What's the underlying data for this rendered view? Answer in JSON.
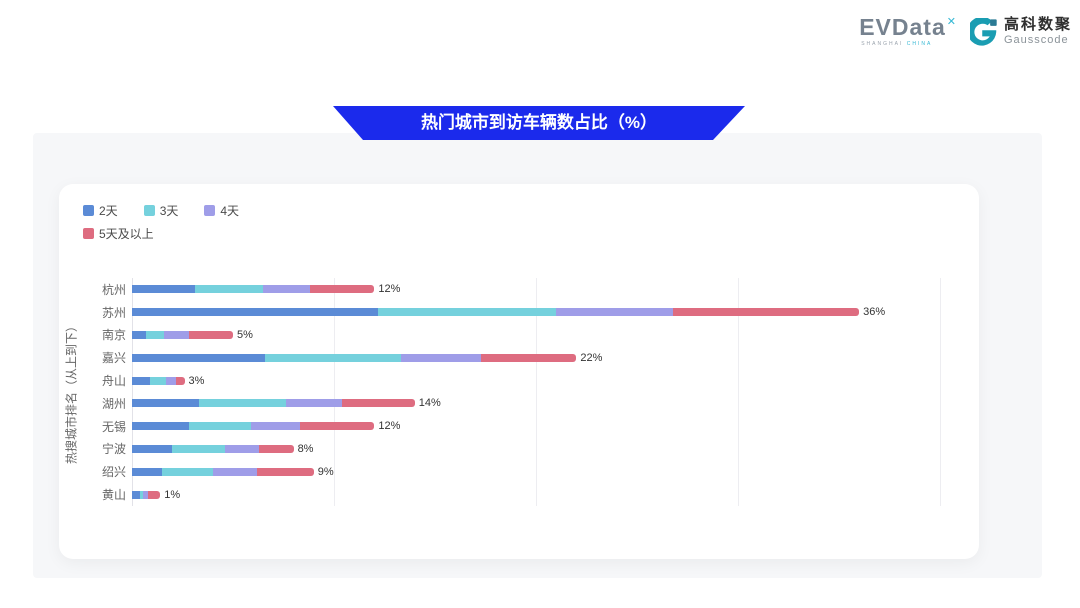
{
  "header": {
    "evdata": {
      "text": "EVData",
      "superscript": "✕",
      "sub_left": "SHANGHAI",
      "sub_right": "CHINA"
    },
    "gausscode": {
      "cn_name": "高科数聚",
      "en_name": "Gausscode"
    }
  },
  "banner": {
    "title": "热门城市到访车辆数占比（%）",
    "color": "#1b2aec"
  },
  "chart_data": {
    "type": "bar",
    "orientation": "horizontal",
    "stacked": true,
    "title": "热门城市到访车辆数占比（%）",
    "ylabel": "热搜城市排名（从上到下）",
    "xlabel": "",
    "xlim": [
      0,
      40
    ],
    "gridlines": [
      10,
      20,
      30,
      40
    ],
    "grid": true,
    "legend_position": "top-left",
    "categories": [
      "杭州",
      "苏州",
      "南京",
      "嘉兴",
      "舟山",
      "湖州",
      "无锡",
      "宁波",
      "绍兴",
      "黄山"
    ],
    "series": [
      {
        "name": "2天",
        "color": "#5b8bd6",
        "values": [
          3.1,
          12.2,
          0.7,
          6.6,
          0.9,
          3.3,
          2.8,
          2.0,
          1.5,
          0.4
        ]
      },
      {
        "name": "3天",
        "color": "#75d1dd",
        "values": [
          3.4,
          8.8,
          0.9,
          6.7,
          0.8,
          4.3,
          3.1,
          2.6,
          2.5,
          0.15
        ]
      },
      {
        "name": "4天",
        "color": "#9f9de8",
        "values": [
          2.3,
          5.8,
          1.2,
          4.0,
          0.5,
          2.8,
          2.4,
          1.7,
          2.2,
          0.25
        ]
      },
      {
        "name": "5天及以上",
        "color": "#de6c80",
        "values": [
          3.2,
          9.2,
          2.2,
          4.7,
          0.4,
          3.6,
          3.7,
          1.7,
          2.8,
          0.6
        ]
      }
    ],
    "total_labels": [
      "12%",
      "36%",
      "5%",
      "22%",
      "3%",
      "14%",
      "12%",
      "8%",
      "9%",
      "1%"
    ]
  }
}
